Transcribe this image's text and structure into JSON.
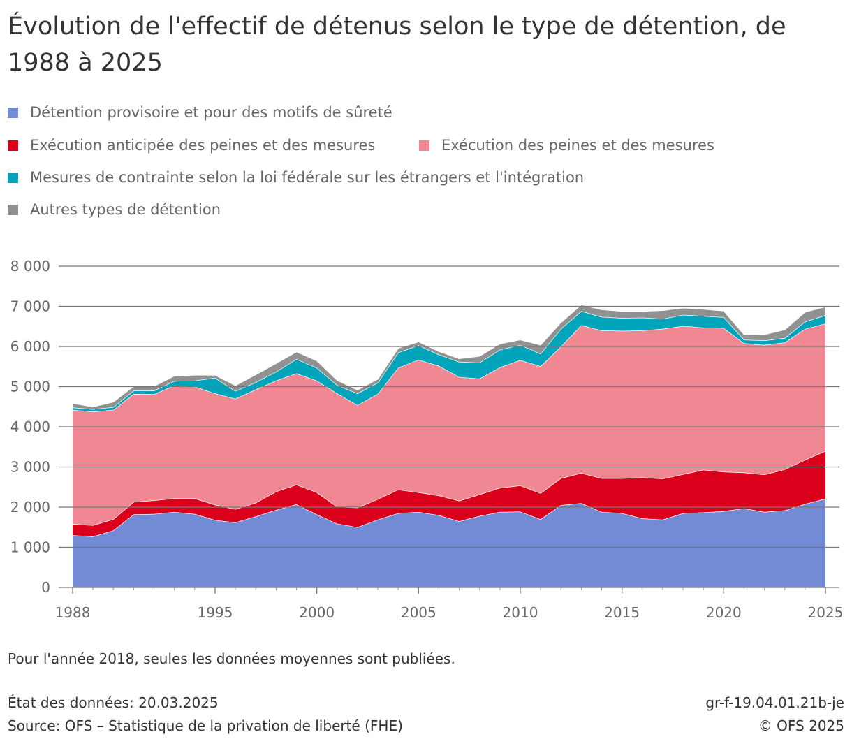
{
  "title": "Évolution de l'effectif de détenus selon le type de détention, de 1988 à 2025",
  "legend": [
    {
      "label": "Détention provisoire et pour des motifs de sûreté",
      "color": "#738bd4"
    },
    {
      "label": "Exécution anticipée des peines et des mesures",
      "color": "#da001b"
    },
    {
      "label": "Exécution des peines et des mesures",
      "color": "#ef8893"
    },
    {
      "label": "Mesures de contrainte selon la loi fédérale sur les étrangers et l'intégration",
      "color": "#00a4bb"
    },
    {
      "label": "Autres types de détention",
      "color": "#919191"
    }
  ],
  "note": "Pour l'année 2018, seules les données moyennes sont publiées.",
  "footer": {
    "status": "État des données: 20.03.2025",
    "source": "Source: OFS – Statistique de la privation de liberté (FHE)",
    "code": "gr-f-19.04.01.21b-je",
    "copyright": "© OFS 2025"
  },
  "chart_data": {
    "type": "area",
    "stacked": true,
    "title": "Évolution de l'effectif de détenus selon le type de détention, de 1988 à 2025",
    "xlabel": "",
    "ylabel": "",
    "ylim": [
      0,
      8000
    ],
    "xlim": [
      1988,
      2025
    ],
    "grid": true,
    "legend_position": "top",
    "x": [
      1988,
      1989,
      1990,
      1991,
      1992,
      1993,
      1994,
      1995,
      1996,
      1997,
      1998,
      1999,
      2000,
      2001,
      2002,
      2003,
      2004,
      2005,
      2006,
      2007,
      2008,
      2009,
      2010,
      2011,
      2012,
      2013,
      2014,
      2015,
      2016,
      2017,
      2018,
      2019,
      2020,
      2021,
      2022,
      2023,
      2024,
      2025
    ],
    "y_ticks": [
      "0",
      "1 000",
      "2 000",
      "3 000",
      "4 000",
      "5 000",
      "6 000",
      "7 000",
      "8 000"
    ],
    "x_ticks": [
      {
        "year": 1988,
        "label": "1988"
      },
      {
        "year": 1995,
        "label": "1995"
      },
      {
        "year": 2000,
        "label": "2000"
      },
      {
        "year": 2005,
        "label": "2005"
      },
      {
        "year": 2010,
        "label": "2010"
      },
      {
        "year": 2015,
        "label": "2015"
      },
      {
        "year": 2020,
        "label": "2020"
      },
      {
        "year": 2025,
        "label": "2025"
      }
    ],
    "series": [
      {
        "name": "Détention provisoire et pour des motifs de sûreté",
        "values": [
          1300,
          1270,
          1420,
          1820,
          1830,
          1880,
          1830,
          1680,
          1620,
          1770,
          1930,
          2070,
          1820,
          1590,
          1500,
          1690,
          1850,
          1880,
          1800,
          1650,
          1780,
          1880,
          1890,
          1700,
          2050,
          2100,
          1880,
          1850,
          1720,
          1690,
          1850,
          1870,
          1900,
          1970,
          1880,
          1920,
          2080,
          2210
        ]
      },
      {
        "name": "Exécution anticipée des peines et des mesures",
        "values": [
          280,
          280,
          280,
          310,
          340,
          340,
          390,
          380,
          330,
          340,
          460,
          490,
          550,
          420,
          490,
          510,
          590,
          490,
          490,
          510,
          540,
          600,
          650,
          650,
          670,
          750,
          840,
          870,
          1020,
          1020,
          970,
          1060,
          980,
          890,
          930,
          1020,
          1100,
          1190
        ]
      },
      {
        "name": "Exécution des peines et des mesures",
        "values": [
          2840,
          2830,
          2720,
          2690,
          2640,
          2810,
          2780,
          2770,
          2750,
          2820,
          2760,
          2770,
          2780,
          2820,
          2550,
          2620,
          3030,
          3300,
          3230,
          3080,
          2880,
          3000,
          3120,
          3160,
          3280,
          3680,
          3680,
          3670,
          3660,
          3730,
          3690,
          3540,
          3580,
          3220,
          3230,
          3160,
          3260,
          3170
        ]
      },
      {
        "name": "Mesures de contrainte selon la loi fédérale sur les étrangers et l'intégration",
        "values": [
          60,
          60,
          70,
          80,
          90,
          110,
          150,
          390,
          190,
          180,
          220,
          360,
          320,
          210,
          290,
          280,
          380,
          360,
          280,
          380,
          400,
          440,
          380,
          310,
          440,
          350,
          340,
          320,
          320,
          250,
          280,
          290,
          270,
          90,
          110,
          110,
          180,
          210
        ]
      },
      {
        "name": "Autres types de détention",
        "values": [
          110,
          60,
          130,
          110,
          110,
          130,
          140,
          70,
          140,
          190,
          210,
          180,
          180,
          120,
          90,
          90,
          110,
          90,
          80,
          80,
          160,
          150,
          130,
          220,
          160,
          160,
          180,
          170,
          160,
          210,
          170,
          170,
          160,
          130,
          150,
          210,
          240,
          210
        ]
      }
    ]
  }
}
